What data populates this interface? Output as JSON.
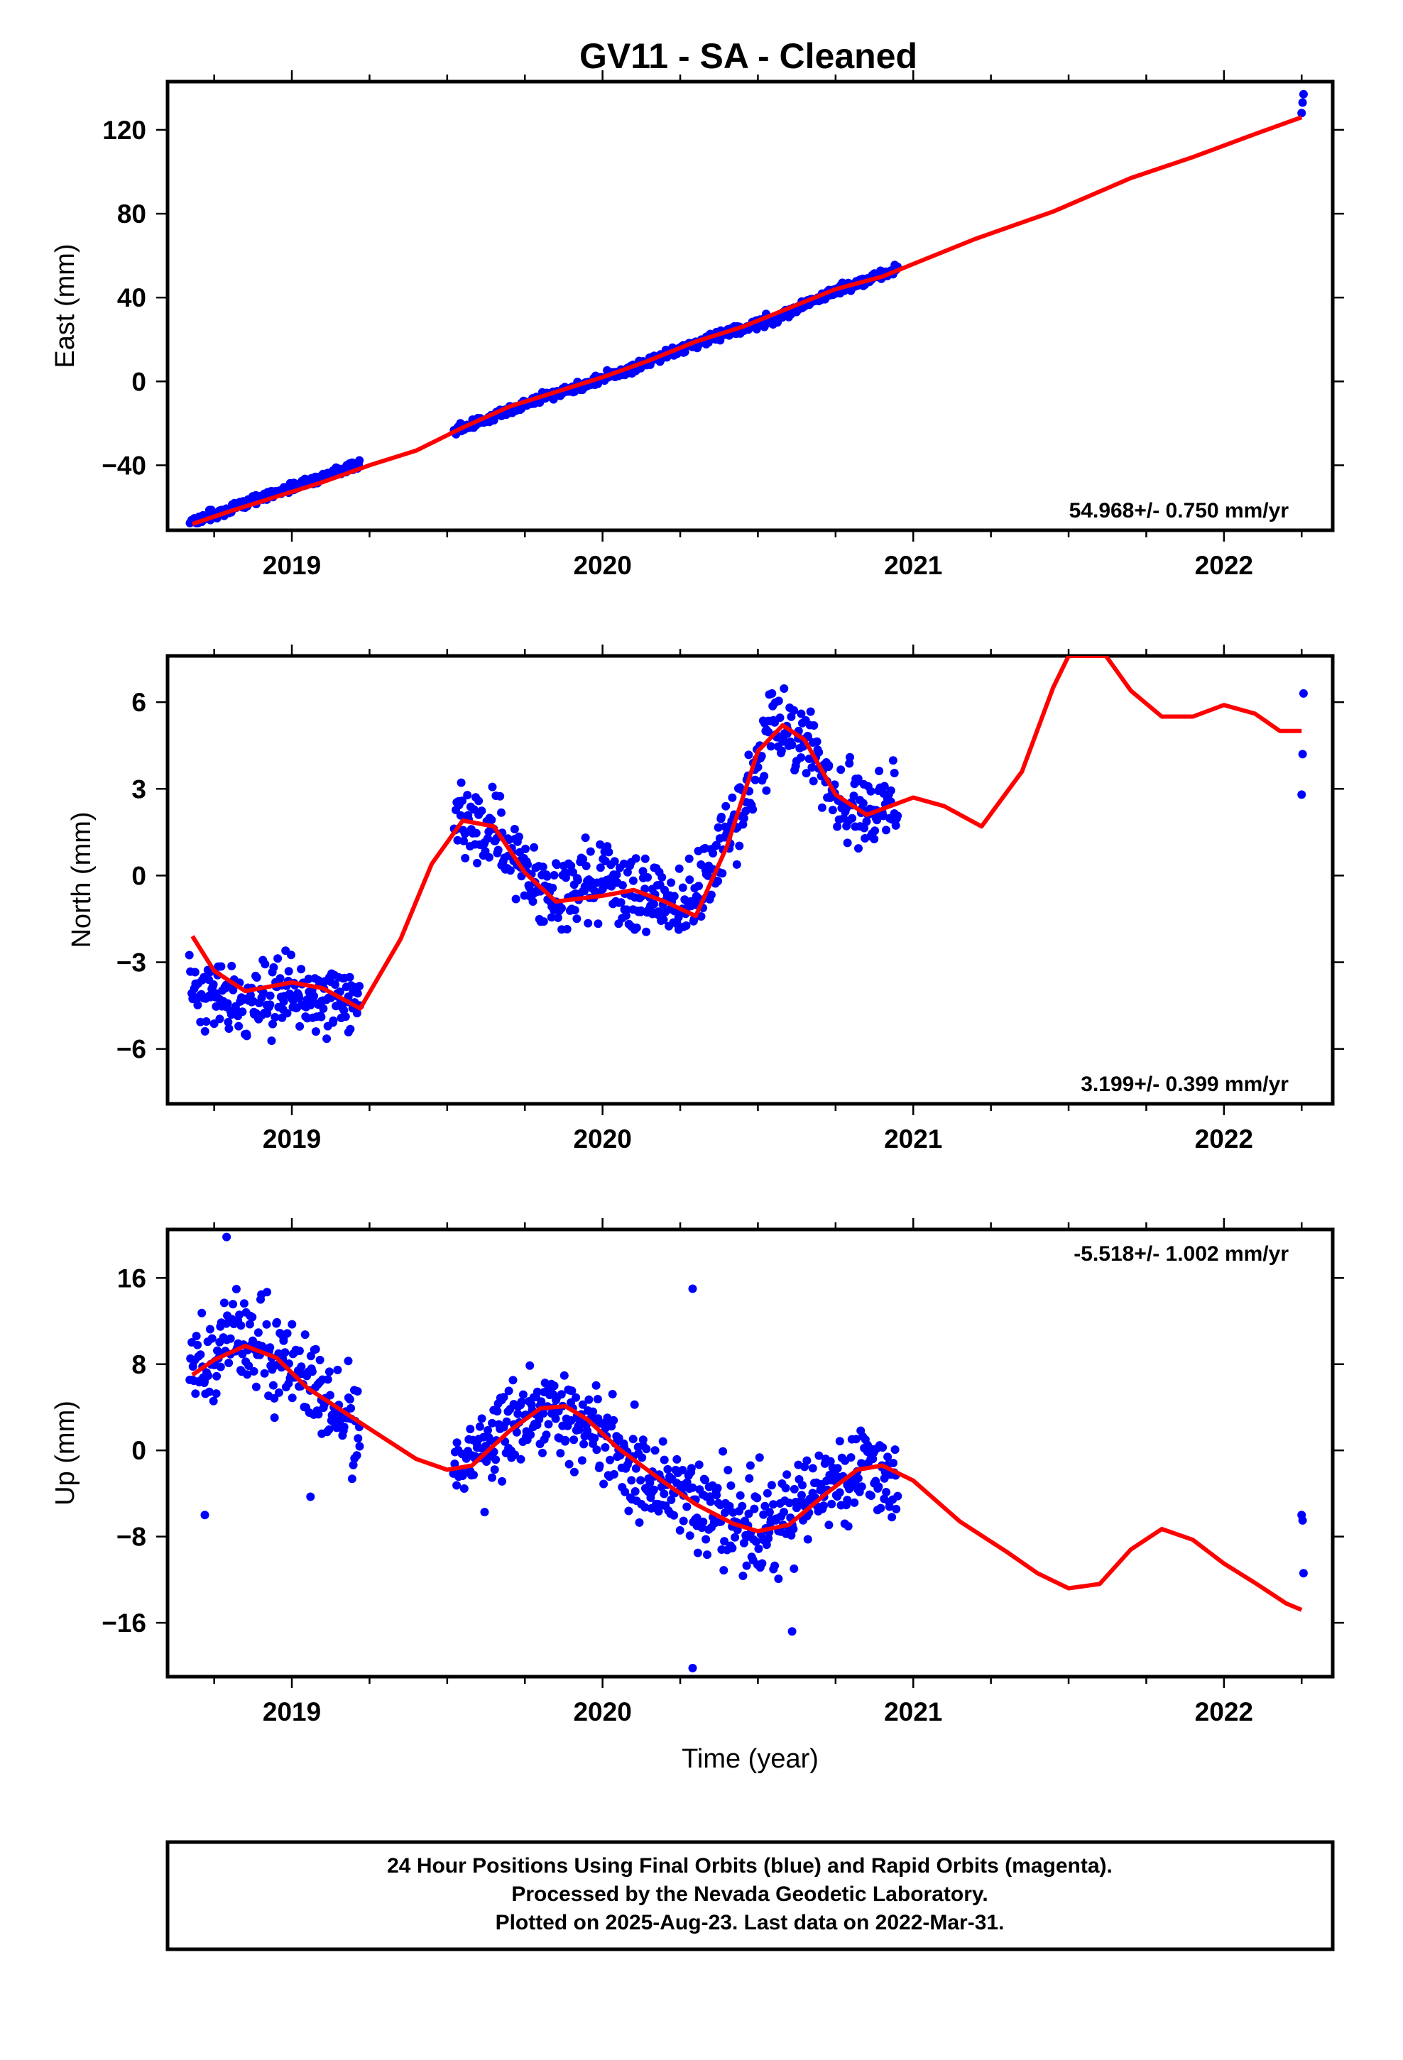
{
  "title": "GV11  - SA - Cleaned",
  "chart_data": [
    {
      "type": "scatter",
      "panel": "east",
      "ylabel": "East (mm)",
      "xlabel": "",
      "xlim": [
        2018.6,
        2022.35
      ],
      "ylim": [
        -71,
        143
      ],
      "yticks": [
        -40,
        0,
        40,
        80,
        120
      ],
      "xticks": [
        2019,
        2020,
        2021,
        2022
      ],
      "rate_label": "54.968+/- 0.750 mm/yr",
      "rate_position": "bottom-right",
      "colors": {
        "points": "#0000ff",
        "fit": "#ff0000"
      },
      "fit": {
        "x": [
          2018.68,
          2018.8,
          2018.95,
          2019.1,
          2019.25,
          2019.4,
          2019.55,
          2019.7,
          2019.85,
          2020.0,
          2020.15,
          2020.3,
          2020.45,
          2020.6,
          2020.75,
          2020.9,
          2021.0,
          2021.2,
          2021.45,
          2021.7,
          2021.9,
          2022.1,
          2022.25
        ],
        "y": [
          -68,
          -62,
          -55,
          -48,
          -40,
          -33,
          -22,
          -12,
          -5,
          2,
          10,
          19,
          26,
          35,
          44,
          50,
          56,
          68,
          81,
          97,
          107,
          118,
          126
        ]
      },
      "points": {
        "ranges": [
          [
            2018.67,
            2019.22
          ],
          [
            2019.52,
            2020.95
          ],
          [
            2022.25,
            2022.26
          ]
        ],
        "trend": [
          [
            2018.68,
            -67
          ],
          [
            2019.22,
            -39
          ],
          [
            2019.52,
            -24
          ],
          [
            2019.8,
            -8
          ],
          [
            2020.0,
            1
          ],
          [
            2020.3,
            18
          ],
          [
            2020.55,
            30
          ],
          [
            2020.75,
            43
          ],
          [
            2020.95,
            54
          ]
        ],
        "noise": 1.6,
        "late_values": [
          128,
          133,
          137
        ]
      }
    },
    {
      "type": "scatter",
      "panel": "north",
      "ylabel": "North (mm)",
      "xlabel": "",
      "xlim": [
        2018.6,
        2022.35
      ],
      "ylim": [
        -7.9,
        7.6
      ],
      "yticks": [
        -6,
        -3,
        0,
        3,
        6
      ],
      "xticks": [
        2019,
        2020,
        2021,
        2022
      ],
      "rate_label": "3.199+/- 0.399 mm/yr",
      "rate_position": "bottom-right",
      "colors": {
        "points": "#0000ff",
        "fit": "#ff0000"
      },
      "fit": {
        "x": [
          2018.68,
          2018.75,
          2018.85,
          2019.0,
          2019.1,
          2019.22,
          2019.35,
          2019.45,
          2019.55,
          2019.65,
          2019.75,
          2019.85,
          2020.0,
          2020.1,
          2020.2,
          2020.3,
          2020.4,
          2020.5,
          2020.58,
          2020.65,
          2020.75,
          2020.85,
          2021.0,
          2021.1,
          2021.22,
          2021.35,
          2021.45,
          2021.5,
          2021.55,
          2021.62,
          2021.7,
          2021.8,
          2021.9,
          2022.0,
          2022.1,
          2022.18,
          2022.25
        ],
        "y": [
          -2.1,
          -3.3,
          -4.0,
          -3.7,
          -3.9,
          -4.6,
          -2.2,
          0.4,
          1.9,
          1.7,
          0.1,
          -0.9,
          -0.7,
          -0.5,
          -0.9,
          -1.4,
          1.0,
          4.3,
          5.2,
          4.7,
          2.8,
          2.1,
          2.7,
          2.4,
          1.7,
          3.6,
          6.5,
          7.6,
          7.6,
          7.6,
          6.4,
          5.5,
          5.5,
          5.9,
          5.6,
          5.0,
          5.0
        ]
      },
      "points": {
        "ranges": [
          [
            2018.67,
            2019.22
          ],
          [
            2019.52,
            2020.95
          ],
          [
            2022.25,
            2022.26
          ]
        ],
        "trend": [
          [
            2018.68,
            -3.8
          ],
          [
            2018.85,
            -4.6
          ],
          [
            2019.0,
            -4.0
          ],
          [
            2019.1,
            -4.4
          ],
          [
            2019.22,
            -4.2
          ],
          [
            2019.52,
            2.0
          ],
          [
            2019.65,
            1.5
          ],
          [
            2019.8,
            -0.6
          ],
          [
            2020.0,
            -0.2
          ],
          [
            2020.15,
            -0.8
          ],
          [
            2020.3,
            -1.0
          ],
          [
            2020.45,
            2.5
          ],
          [
            2020.55,
            5.1
          ],
          [
            2020.65,
            4.8
          ],
          [
            2020.75,
            2.6
          ],
          [
            2020.95,
            2.5
          ]
        ],
        "noise": 0.9,
        "late_values": [
          2.8,
          4.2,
          6.3
        ]
      }
    },
    {
      "type": "scatter",
      "panel": "up",
      "ylabel": "Up (mm)",
      "xlabel": "Time (year)",
      "xlim": [
        2018.6,
        2022.35
      ],
      "ylim": [
        -21,
        20.5
      ],
      "yticks": [
        -16,
        -8,
        0,
        8,
        16
      ],
      "xticks": [
        2019,
        2020,
        2021,
        2022
      ],
      "rate_label": "-5.518+/- 1.002 mm/yr",
      "rate_position": "top-right",
      "colors": {
        "points": "#0000ff",
        "fit": "#ff0000"
      },
      "fit": {
        "x": [
          2018.68,
          2018.75,
          2018.85,
          2018.95,
          2019.05,
          2019.15,
          2019.25,
          2019.4,
          2019.5,
          2019.58,
          2019.7,
          2019.8,
          2019.88,
          2019.95,
          2020.05,
          2020.2,
          2020.3,
          2020.42,
          2020.5,
          2020.6,
          2020.72,
          2020.82,
          2020.9,
          2021.0,
          2021.15,
          2021.3,
          2021.4,
          2021.5,
          2021.6,
          2021.7,
          2021.8,
          2021.9,
          2022.0,
          2022.1,
          2022.2,
          2022.25
        ],
        "y": [
          7.0,
          8.4,
          9.7,
          8.6,
          5.8,
          3.9,
          2.0,
          -0.8,
          -1.8,
          -1.4,
          1.8,
          3.9,
          4.1,
          2.9,
          0.2,
          -3.0,
          -5.0,
          -6.8,
          -7.5,
          -6.9,
          -4.0,
          -1.8,
          -1.4,
          -2.8,
          -6.6,
          -9.4,
          -11.4,
          -12.8,
          -12.4,
          -9.2,
          -7.3,
          -8.3,
          -10.5,
          -12.3,
          -14.2,
          -14.8
        ]
      },
      "points": {
        "ranges": [
          [
            2018.67,
            2019.22
          ],
          [
            2019.52,
            2020.95
          ],
          [
            2022.25,
            2022.26
          ]
        ],
        "trend": [
          [
            2018.68,
            7.5
          ],
          [
            2018.85,
            10.5
          ],
          [
            2019.0,
            8.0
          ],
          [
            2019.1,
            5.0
          ],
          [
            2019.22,
            2.0
          ],
          [
            2019.52,
            -1.5
          ],
          [
            2019.7,
            2.0
          ],
          [
            2019.85,
            4.0
          ],
          [
            2020.0,
            1.5
          ],
          [
            2020.15,
            -3.0
          ],
          [
            2020.3,
            -5.5
          ],
          [
            2020.5,
            -7.5
          ],
          [
            2020.65,
            -5.0
          ],
          [
            2020.8,
            -2.0
          ],
          [
            2020.95,
            -3.0
          ]
        ],
        "noise": 3.0,
        "outliers": [
          [
            2018.79,
            19.8
          ],
          [
            2020.29,
            15.0
          ],
          [
            2020.29,
            -20.2
          ],
          [
            2020.61,
            -16.8
          ],
          [
            2018.72,
            -6.0
          ],
          [
            2019.06,
            -4.3
          ]
        ],
        "late_values": [
          -6.0,
          -6.5,
          -11.4
        ]
      }
    }
  ],
  "footer": {
    "line1": "24 Hour Positions Using Final Orbits (blue) and Rapid Orbits (magenta).",
    "line2": "Processed by the Nevada Geodetic Laboratory.",
    "line3": "Plotted on 2025-Aug-23. Last data on 2022-Mar-31."
  }
}
